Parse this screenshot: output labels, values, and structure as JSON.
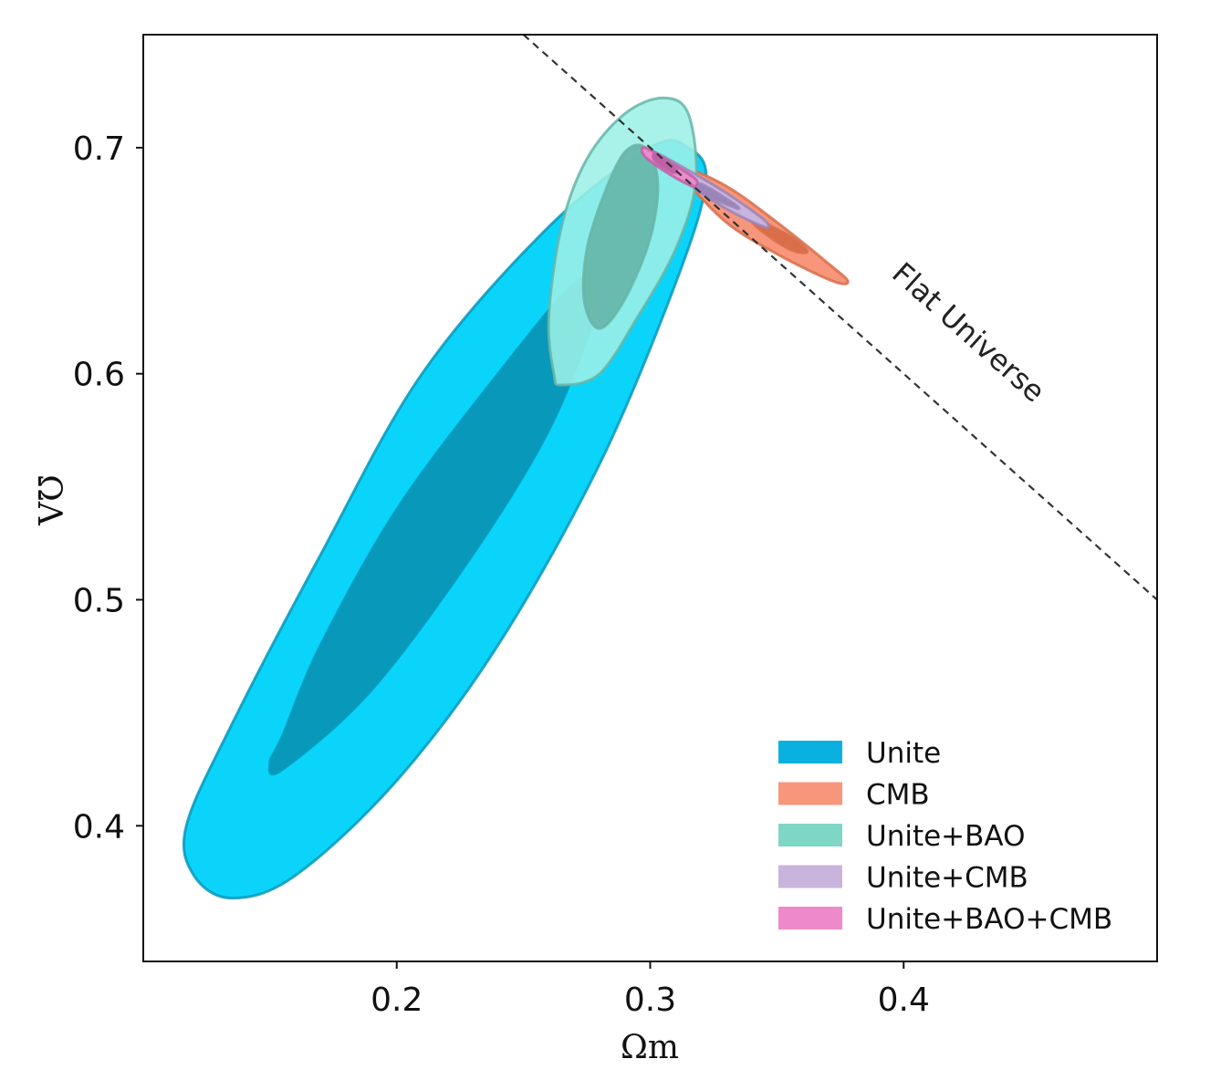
{
  "chart_data": {
    "type": "contour",
    "xlabel": "Ωm",
    "ylabel": "ΩΛ",
    "xlim": [
      0.1,
      0.5
    ],
    "ylim": [
      0.34,
      0.75
    ],
    "xticks": [
      0.2,
      0.3,
      0.4
    ],
    "xtick_labels": [
      "0.2",
      "0.3",
      "0.4"
    ],
    "yticks": [
      0.4,
      0.5,
      0.6,
      0.7
    ],
    "ytick_labels": [
      "0.4",
      "0.5",
      "0.6",
      "0.7"
    ],
    "grid": false,
    "legend_position": "lower-right",
    "series": [
      {
        "name": "Unite",
        "color": "#0ab0e0",
        "outer_color": "#0bd4fb",
        "inner_color": "#0898ba",
        "contours": [
          {
            "level": "95%",
            "points": [
              [
                0.135,
                0.368
              ],
              [
                0.16,
                0.378
              ],
              [
                0.2,
                0.42
              ],
              [
                0.24,
                0.48
              ],
              [
                0.28,
                0.56
              ],
              [
                0.31,
                0.64
              ],
              [
                0.322,
                0.685
              ],
              [
                0.315,
                0.7
              ],
              [
                0.3,
                0.7
              ],
              [
                0.26,
                0.665
              ],
              [
                0.21,
                0.6
              ],
              [
                0.17,
                0.52
              ],
              [
                0.135,
                0.445
              ],
              [
                0.117,
                0.4
              ],
              [
                0.12,
                0.378
              ]
            ]
          },
          {
            "level": "68%",
            "points": [
              [
                0.155,
                0.425
              ],
              [
                0.19,
                0.46
              ],
              [
                0.23,
                0.52
              ],
              [
                0.26,
                0.575
              ],
              [
                0.278,
                0.625
              ],
              [
                0.28,
                0.638
              ],
              [
                0.27,
                0.64
              ],
              [
                0.24,
                0.6
              ],
              [
                0.2,
                0.54
              ],
              [
                0.17,
                0.48
              ],
              [
                0.155,
                0.44
              ],
              [
                0.15,
                0.428
              ]
            ]
          }
        ]
      },
      {
        "name": "CMB",
        "color": "#f7967b",
        "outer_color": "#f7967b",
        "inner_color": "#d86f4a",
        "contours": [
          {
            "level": "95%",
            "points": [
              [
                0.31,
                0.693
              ],
              [
                0.33,
                0.683
              ],
              [
                0.35,
                0.667
              ],
              [
                0.37,
                0.649
              ],
              [
                0.378,
                0.641
              ],
              [
                0.372,
                0.641
              ],
              [
                0.35,
                0.653
              ],
              [
                0.33,
                0.667
              ],
              [
                0.312,
                0.688
              ]
            ]
          },
          {
            "level": "68%",
            "points": [
              [
                0.34,
                0.669
              ],
              [
                0.355,
                0.661
              ],
              [
                0.362,
                0.654
              ],
              [
                0.355,
                0.655
              ],
              [
                0.343,
                0.664
              ]
            ]
          }
        ]
      },
      {
        "name": "Unite+BAO",
        "color": "#7ed6c4",
        "outer_color": "#9cf0e6",
        "inner_color": "#66b5a8",
        "contours": [
          {
            "level": "95%",
            "points": [
              [
                0.265,
                0.595
              ],
              [
                0.28,
                0.6
              ],
              [
                0.295,
                0.625
              ],
              [
                0.31,
                0.655
              ],
              [
                0.318,
                0.685
              ],
              [
                0.315,
                0.715
              ],
              [
                0.305,
                0.722
              ],
              [
                0.29,
                0.715
              ],
              [
                0.275,
                0.695
              ],
              [
                0.265,
                0.665
              ],
              [
                0.26,
                0.625
              ],
              [
                0.262,
                0.6
              ]
            ]
          },
          {
            "level": "68%",
            "points": [
              [
                0.28,
                0.62
              ],
              [
                0.29,
                0.633
              ],
              [
                0.3,
                0.66
              ],
              [
                0.303,
                0.685
              ],
              [
                0.298,
                0.7
              ],
              [
                0.29,
                0.698
              ],
              [
                0.282,
                0.68
              ],
              [
                0.275,
                0.655
              ],
              [
                0.274,
                0.632
              ]
            ]
          }
        ]
      },
      {
        "name": "Unite+CMB",
        "color": "#c8b4dc",
        "outer_color": "#c8b4dc",
        "inner_color": "#9b85b8",
        "contours": [
          {
            "level": "95%",
            "points": [
              [
                0.3,
                0.699
              ],
              [
                0.315,
                0.69
              ],
              [
                0.33,
                0.68
              ],
              [
                0.345,
                0.668
              ],
              [
                0.345,
                0.665
              ],
              [
                0.33,
                0.673
              ],
              [
                0.315,
                0.684
              ],
              [
                0.302,
                0.694
              ]
            ]
          },
          {
            "level": "68%",
            "points": [
              [
                0.32,
                0.684
              ],
              [
                0.332,
                0.676
              ],
              [
                0.335,
                0.673
              ],
              [
                0.33,
                0.675
              ],
              [
                0.32,
                0.68
              ]
            ]
          }
        ]
      },
      {
        "name": "Unite+BAO+CMB",
        "color": "#ee8acb",
        "outer_color": "#ee8acb",
        "inner_color": "#c060a8",
        "contours": [
          {
            "level": "95%",
            "points": [
              [
                0.298,
                0.7
              ],
              [
                0.31,
                0.692
              ],
              [
                0.318,
                0.686
              ],
              [
                0.317,
                0.683
              ],
              [
                0.308,
                0.688
              ],
              [
                0.298,
                0.696
              ]
            ]
          },
          {
            "level": "68%",
            "points": [
              [
                0.302,
                0.697
              ],
              [
                0.31,
                0.691
              ],
              [
                0.309,
                0.689
              ],
              [
                0.302,
                0.694
              ]
            ]
          }
        ]
      }
    ],
    "reference_line": {
      "label": "Flat Universe",
      "points": [
        [
          0.25,
          0.75
        ],
        [
          0.5,
          0.5
        ]
      ]
    }
  }
}
